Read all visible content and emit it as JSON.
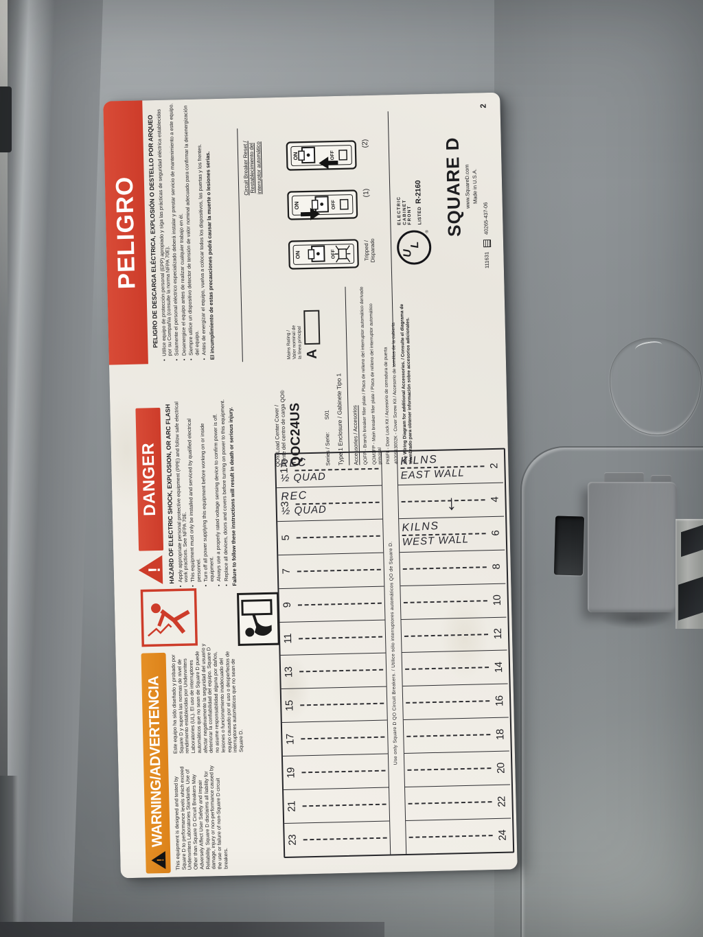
{
  "colors": {
    "panel_gray": "#8a8f92",
    "label_paper": "#f1eee7",
    "safety_red": "#cd3c2a",
    "safety_orange": "#dd831a",
    "handwriting_ink": "#26262e"
  },
  "icons": {
    "warning_triangle": "black exclamation triangle",
    "danger_triangle": "red exclamation triangle",
    "arc_flash_person": "red shock/arc-flash figure",
    "replace_cover_person": "black figure replacing cover",
    "ul_listed_mark": "UL",
    "cert_box_mark": "boxed certification mark",
    "ditto_arrow": "↓"
  },
  "label": {
    "warning": {
      "header": "WARNING/ADVERTENCIA",
      "english": "This equipment is designed and tested by Square D to performance levels which exceed Underwriters Laboratories Standards. Use of Other than Square D Circuit Breakers May Adversely Affect User Safety and Impair Reliability. Square D disclaims all liability for damage, injury or non-performance caused by the use or failure of non-Square D circuit breakers.",
      "spanish": "Este equipo ha sido diseñado y probado por Square D y supera las normas de nivel de rendimiento establecidas por Underwriters Laboratories (UL). El uso de interruptores automáticos que no sean de Square D puede afectar negativamente la seguridad del usuario y deteriorar la confiabilidad del equipo. Square D no asume responsabilidad alguna por daños, lesiones o funcionamiento inadecuado del equipo causado por el uso o desperfectos de interruptores automáticos que no sean de Square D."
    },
    "danger": {
      "header": "DANGER",
      "title": "HAZARD OF ELECTRIC SHOCK, EXPLOSION, OR ARC FLASH",
      "bullets": [
        "Apply appropriate personal protective equipment (PPE) and follow safe electrical work practices. See NFPA 70E.",
        "This equipment must only be installed and serviced by qualified electrical personnel.",
        "Turn off all power supplying this equipment before working on or inside equipment.",
        "Always use a properly rated voltage sensing device to confirm power is off.",
        "Replace all devices, doors and covers before turning on power to this equipment."
      ],
      "failure": "Failure to follow these instructions will result in death or serious injury."
    },
    "peligro": {
      "header": "PELIGRO",
      "title": "PELIGRO DE DESCARGA ELÉCTRICA, EXPLOSIÓN O DESTELLO POR ARQUEO",
      "bullets": [
        "Utilice equipo de protección personal (EPP) apropiado y siga las prácticas de seguridad eléctrica establecidas por su Compañía (consulte la norma NFPA 70E).",
        "Solamente el personal eléctrico especializado deberá instalar y prestar servicio de mantenimiento a este equipo.",
        "Desenergice el equipo antes de realizar cualquier trabajo en él.",
        "Siempre utilice un dispositivo detector de tensión de valor nominal adecuado para confirmar la desenergización del equipo.",
        "Antes de energizar el equipo, vuelva a colocar todos los dispositivos, las puertas y los frentes."
      ],
      "failure": "El incumplimiento de estas precauciones podrá causar la muerte o lesiones serias."
    },
    "reset": {
      "header_en": "Circuit Breaker Reset /",
      "header_es1": "Restablecimiento del",
      "header_es2": "interruptor automático",
      "on": "ON",
      "off": "OFF",
      "caption_tripped1": "Tripped /",
      "caption_tripped2": "Disparado",
      "caption_step1": "(1)",
      "caption_step2": "(2)"
    },
    "product": {
      "title_en": "QO® Load Center Cover /",
      "title_es": "Frente del centro de carga QO®",
      "model": "QOC24US",
      "series_label": "Series / Serie:",
      "series_value": "S01",
      "mains_label1": "Mains Rating /",
      "mains_label2": "Valor nominal de",
      "mains_label3": "la línea principal",
      "mains_value": "A",
      "enclosure": "Type 1 Enclosure / Gabinete Tipo 1",
      "accessories_header": "Accessories / Accesorios",
      "accessories": [
        "QOFP - Branch breaker filler plate / Placa de relleno del interruptor automático derivado",
        "QOM1FP - Main breaker filler plate / Placa de relleno del interruptor automático principal",
        "PK6FL - Door Lock Kit / Accesorio de cerradura de puerta",
        "4020513002K - Cover Screw Kit / Accesorio de tornillos de la cubierta"
      ],
      "see_wiring": "See Wiring Diagram for additional Accessories. / Consulte el diagrama de alambrado para obtener información sobre accesorios adicionales."
    },
    "cert": {
      "front1": "ELECTRIC",
      "front2": "CABINET",
      "front3": "FRONT",
      "listed": "LISTED",
      "number": "R-2160",
      "ul_u": "U",
      "ul_l": "L",
      "ul_r": "®"
    },
    "brand": {
      "name": "SQUARE D",
      "url": "www.SquareD.com",
      "made": "Made in U.S.A.",
      "doc": "111631",
      "part": "40265-437-06",
      "rev": "2"
    },
    "directory": {
      "odd": [
        "1",
        "3",
        "5",
        "7",
        "9",
        "11",
        "13",
        "15",
        "17",
        "19",
        "21",
        "23"
      ],
      "even": [
        "2",
        "4",
        "6",
        "8",
        "10",
        "12",
        "14",
        "16",
        "18",
        "20",
        "22",
        "24"
      ],
      "note": "Use only Square D QO Circuit Breakers.  /  Utilice sólo interruptores automáticos QO de Square D.",
      "entries": [
        {
          "circuit": "1",
          "line1": "REC",
          "line2": "½ QUAD"
        },
        {
          "circuit": "3",
          "line1": "REC",
          "line2": "½ QUAD"
        },
        {
          "circuit": "2",
          "line1": "KILNS",
          "line2": "EAST WALL"
        },
        {
          "circuit": "4",
          "line1": "↓",
          "line2": "",
          "arrow": true
        },
        {
          "circuit": "6",
          "line1": "KILNS",
          "line2": "WEST WALL"
        }
      ]
    }
  }
}
